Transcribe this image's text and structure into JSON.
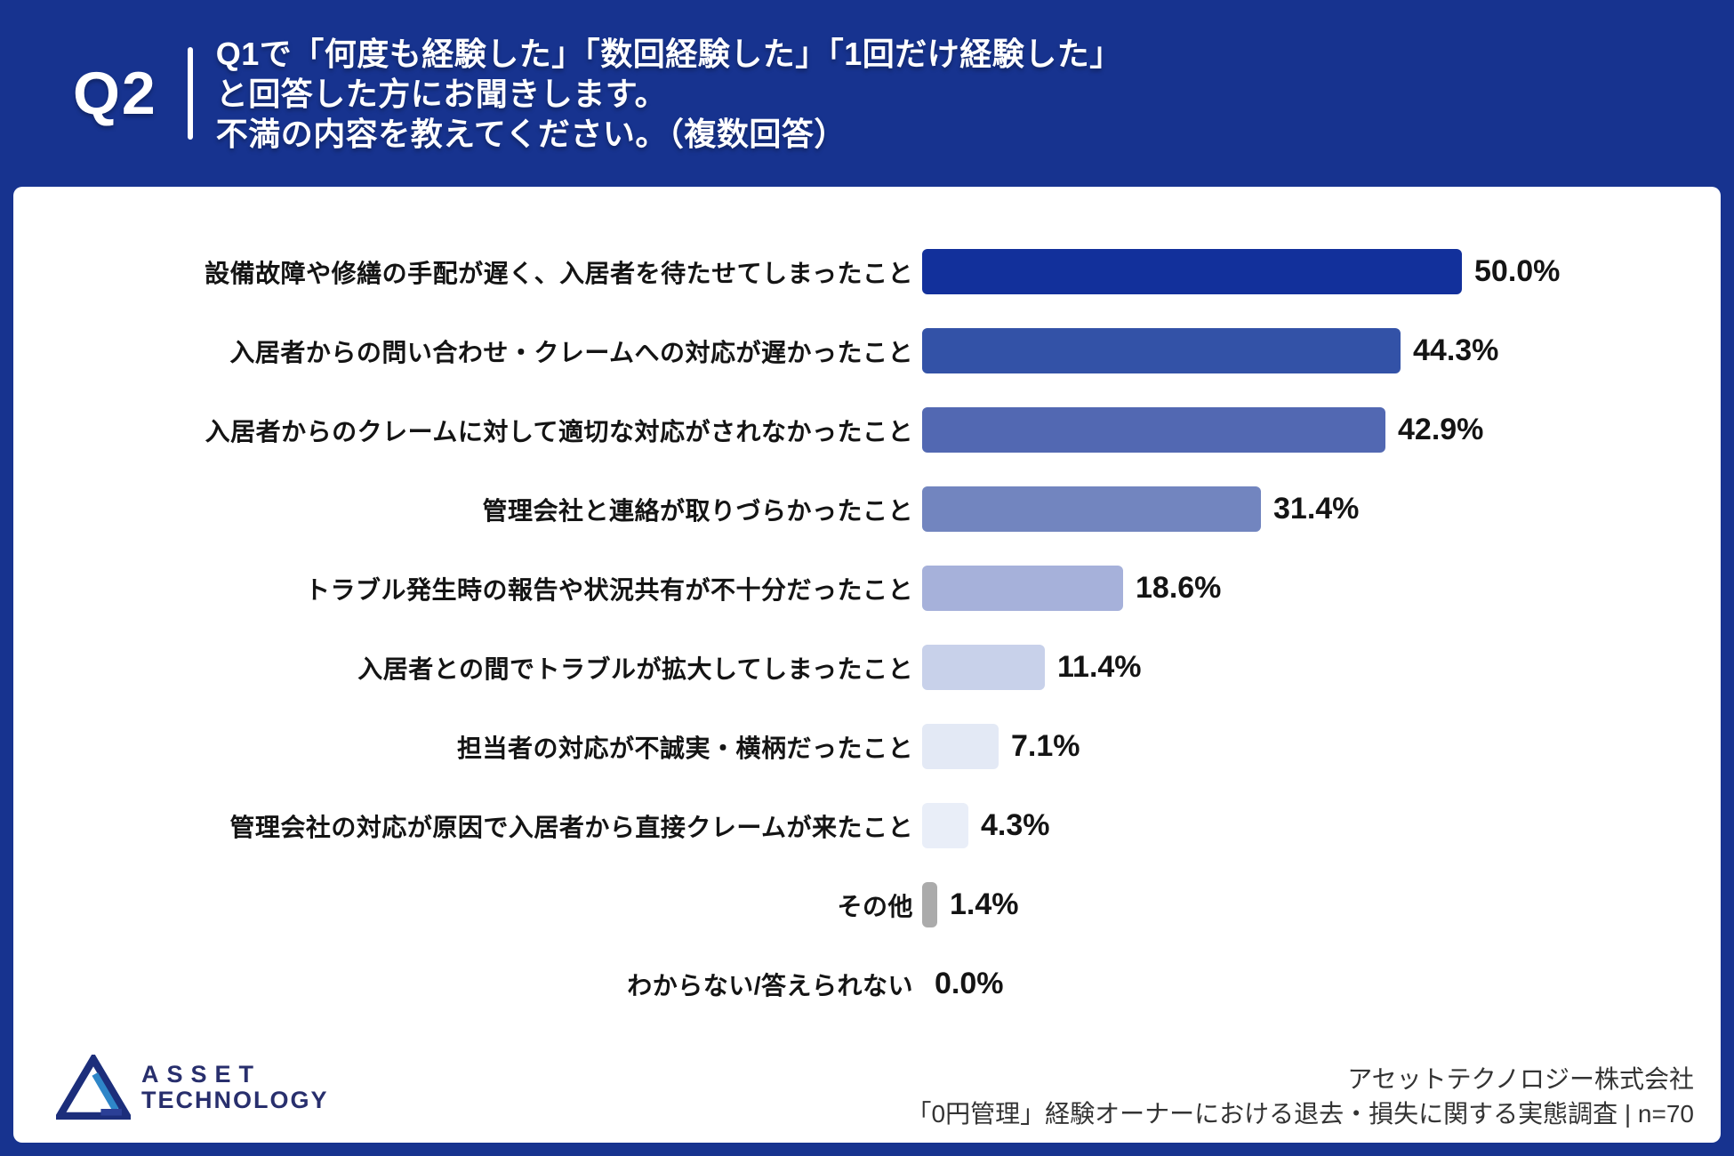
{
  "header": {
    "question_number": "Q2",
    "title_lines": [
      "Q1で「何度も経験した」「数回経験した」「1回だけ経験した」",
      "と回答した方にお聞きします。",
      "不満の内容を教えてください。（複数回答）"
    ]
  },
  "chart_data": {
    "type": "bar",
    "orientation": "horizontal",
    "unit": "%",
    "xlim": [
      0,
      50
    ],
    "grid": false,
    "legend": "none",
    "categories": [
      "設備故障や修繕の手配が遅く、入居者を待たせてしまったこと",
      "入居者からの問い合わせ・クレームへの対応が遅かったこと",
      "入居者からのクレームに対して適切な対応がされなかったこと",
      "管理会社と連絡が取りづらかったこと",
      "トラブル発生時の報告や状況共有が不十分だったこと",
      "入居者との間でトラブルが拡大してしまったこと",
      "担当者の対応が不誠実・横柄だったこと",
      "管理会社の対応が原因で入居者から直接クレームが来たこと",
      "その他",
      "わからない/答えられない"
    ],
    "values": [
      50.0,
      44.3,
      42.9,
      31.4,
      18.6,
      11.4,
      7.1,
      4.3,
      1.4,
      0.0
    ],
    "value_labels": [
      "50.0%",
      "44.3%",
      "42.9%",
      "31.4%",
      "18.6%",
      "11.4%",
      "7.1%",
      "4.3%",
      "1.4%",
      "0.0%"
    ],
    "bar_colors": [
      "#12309B",
      "#3352A7",
      "#5268B2",
      "#7285BF",
      "#A6B1DA",
      "#C8D1EA",
      "#E3E9F5",
      "#E9EEF8",
      "#ABABAB",
      "transparent"
    ]
  },
  "footer": {
    "logo_line1": "ASSET",
    "logo_line2": "TECHNOLOGY",
    "source_line1": "アセットテクノロジー株式会社",
    "source_line2": "「0円管理」経験オーナーにおける退去・損失に関する実態調査 | n=70"
  },
  "colors": {
    "page_background": "#17338F",
    "card_background": "#FFFFFF",
    "header_text": "#FFFFFF",
    "label_text": "#141414",
    "source_text": "#333333",
    "logo_navy": "#282F6D",
    "logo_accent_blue": "#2E86C8"
  }
}
